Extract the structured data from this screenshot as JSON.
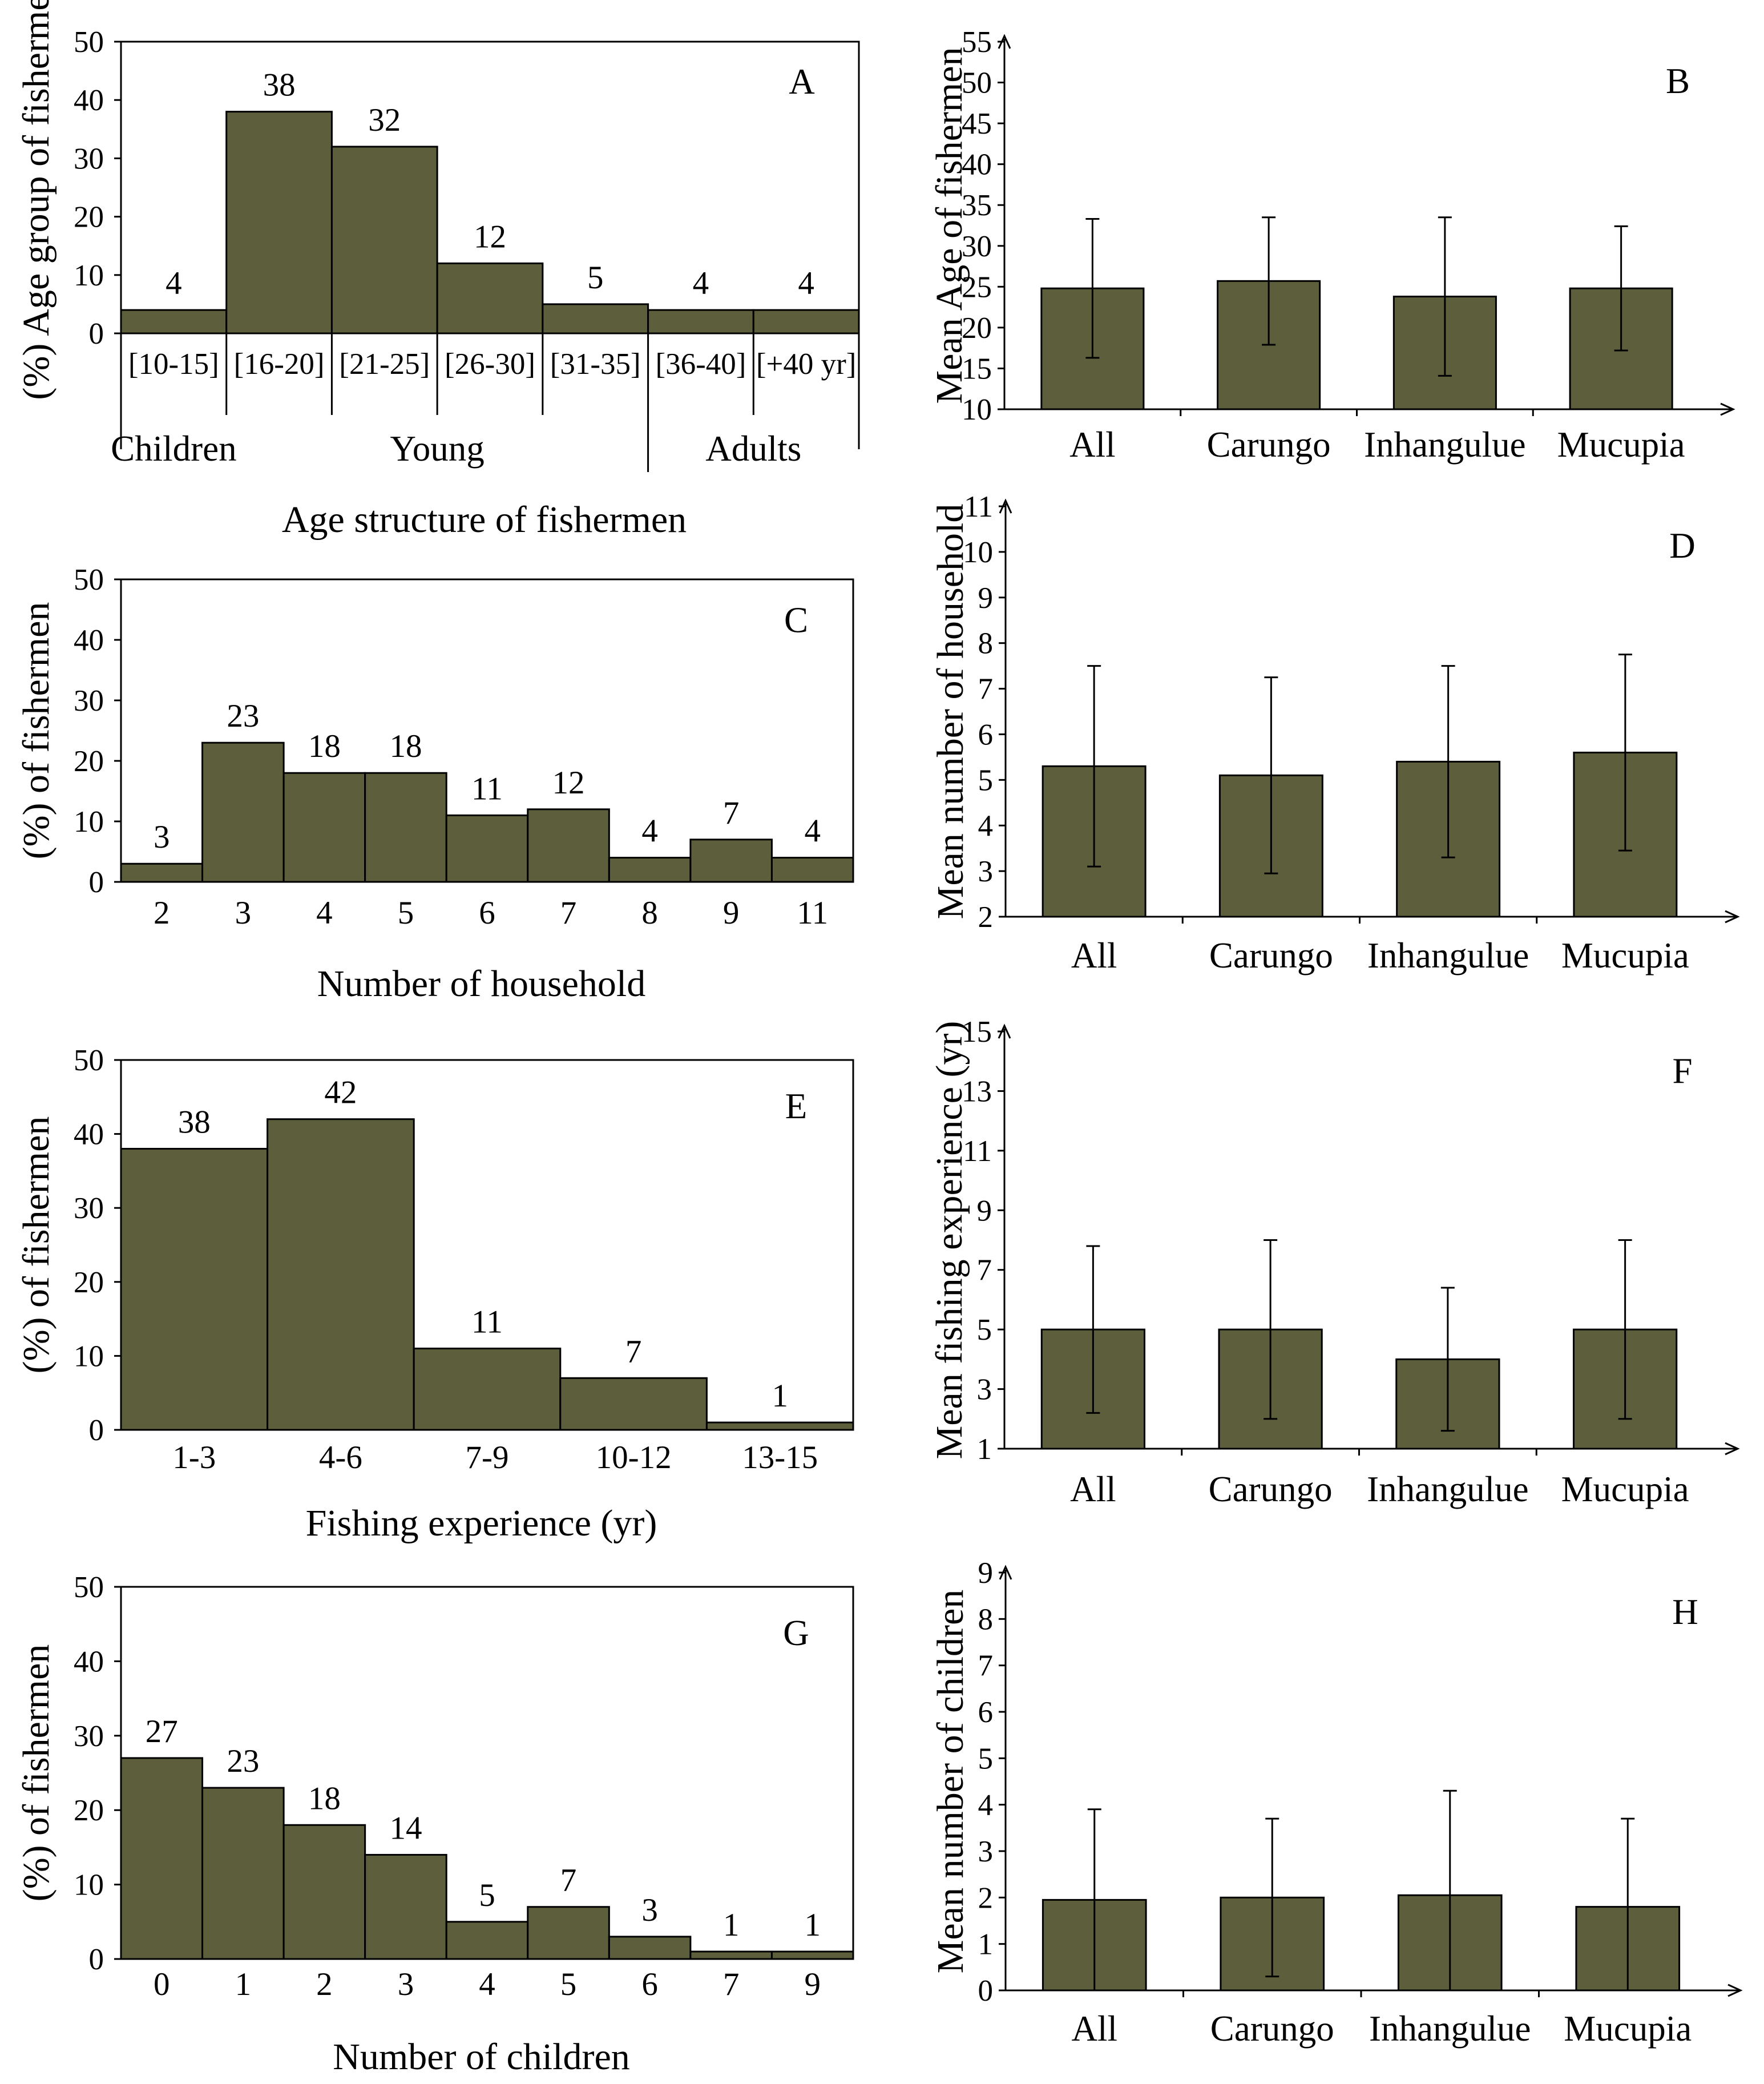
{
  "colors": {
    "bar": "#5c5e3c",
    "stroke": "#000000",
    "background": "#ffffff"
  },
  "chart_data": [
    {
      "id": "A",
      "panel_label": "A",
      "type": "bar",
      "variant": "histogram",
      "title": "",
      "xlabel": "Age structure of fishermen",
      "ylabel": "(%) Age group of fishermen",
      "categories": [
        "[10-15]",
        "[16-20]",
        "[21-25]",
        "[26-30]",
        "[31-35]",
        "[36-40]",
        "[+40 yr]"
      ],
      "values": [
        4,
        38,
        32,
        12,
        5,
        4,
        4
      ],
      "data_labels": [
        "4",
        "38",
        "32",
        "12",
        "5",
        "4",
        "4"
      ],
      "ylim": [
        0,
        50
      ],
      "yticks": [
        0,
        10,
        20,
        30,
        40,
        50
      ],
      "groups": [
        {
          "label": "Children",
          "from": 0,
          "to": 0
        },
        {
          "label": "Young",
          "from": 1,
          "to": 4
        },
        {
          "label": "Adults",
          "from": 5,
          "to": 6
        }
      ]
    },
    {
      "id": "B",
      "panel_label": "B",
      "type": "bar",
      "variant": "errorbar",
      "title": "",
      "xlabel": "",
      "ylabel": "Mean Age of fishermen",
      "categories": [
        "All",
        "Carungo",
        "Inhangulue",
        "Mucupia"
      ],
      "values": [
        24.8,
        25.7,
        23.8,
        24.8
      ],
      "errors": [
        8.5,
        7.8,
        9.7,
        7.6
      ],
      "ylim": [
        10,
        55
      ],
      "yticks": [
        10,
        15,
        20,
        25,
        30,
        35,
        40,
        45,
        50,
        55
      ]
    },
    {
      "id": "C",
      "panel_label": "C",
      "type": "bar",
      "variant": "histogram",
      "title": "",
      "xlabel": "Number of household",
      "ylabel": "(%) of fishermen",
      "categories": [
        "2",
        "3",
        "4",
        "5",
        "6",
        "7",
        "8",
        "9",
        "11"
      ],
      "values": [
        3,
        23,
        18,
        18,
        11,
        12,
        4,
        7,
        4
      ],
      "data_labels": [
        "3",
        "23",
        "18",
        "18",
        "11",
        "12",
        "4",
        "7",
        "4"
      ],
      "ylim": [
        0,
        50
      ],
      "yticks": [
        0,
        10,
        20,
        30,
        40,
        50
      ]
    },
    {
      "id": "D",
      "panel_label": "D",
      "type": "bar",
      "variant": "errorbar",
      "title": "",
      "xlabel": "",
      "ylabel": "Mean number of household",
      "categories": [
        "All",
        "Carungo",
        "Inhangulue",
        "Mucupia"
      ],
      "values": [
        5.3,
        5.1,
        5.4,
        5.6
      ],
      "errors": [
        2.2,
        2.15,
        2.1,
        2.15
      ],
      "ylim": [
        2,
        11
      ],
      "yticks": [
        2,
        3,
        4,
        5,
        6,
        7,
        8,
        9,
        10,
        11
      ]
    },
    {
      "id": "E",
      "panel_label": "E",
      "type": "bar",
      "variant": "histogram",
      "title": "",
      "xlabel": "Fishing  experience (yr)",
      "ylabel": "(%) of fishermen",
      "categories": [
        "1-3",
        "4-6",
        "7-9",
        "10-12",
        "13-15"
      ],
      "values": [
        38,
        42,
        11,
        7,
        1
      ],
      "data_labels": [
        "38",
        "42",
        "11",
        "7",
        "1"
      ],
      "ylim": [
        0,
        50
      ],
      "yticks": [
        0,
        10,
        20,
        30,
        40,
        50
      ]
    },
    {
      "id": "F",
      "panel_label": "F",
      "type": "bar",
      "variant": "errorbar",
      "title": "",
      "xlabel": "",
      "ylabel": "Mean fishing experience (yr)",
      "categories": [
        "All",
        "Carungo",
        "Inhangulue",
        "Mucupia"
      ],
      "values": [
        5,
        5,
        4,
        5
      ],
      "errors": [
        2.8,
        3,
        2.4,
        3
      ],
      "ylim": [
        1,
        15
      ],
      "yticks": [
        1,
        3,
        5,
        7,
        9,
        11,
        13,
        15
      ]
    },
    {
      "id": "G",
      "panel_label": "G",
      "type": "bar",
      "variant": "histogram",
      "title": "",
      "xlabel": "Number of children",
      "ylabel": "(%) of fishermen",
      "categories": [
        "0",
        "1",
        "2",
        "3",
        "4",
        "5",
        "6",
        "7",
        "9"
      ],
      "values": [
        27,
        23,
        18,
        14,
        5,
        7,
        3,
        1,
        1
      ],
      "data_labels": [
        "27",
        "23",
        "18",
        "14",
        "5",
        "7",
        "3",
        "1",
        "1"
      ],
      "ylim": [
        0,
        50
      ],
      "yticks": [
        0,
        10,
        20,
        30,
        40,
        50
      ]
    },
    {
      "id": "H",
      "panel_label": "H",
      "type": "bar",
      "variant": "errorbar",
      "title": "",
      "xlabel": "",
      "ylabel": "Mean number of children",
      "categories": [
        "All",
        "Carungo",
        "Inhangulue",
        "Mucupia"
      ],
      "values": [
        1.95,
        2.0,
        2.05,
        1.8
      ],
      "errors": [
        1.95,
        1.7,
        2.25,
        1.9
      ],
      "ylim": [
        0,
        9
      ],
      "yticks": [
        0,
        1,
        2,
        3,
        4,
        5,
        6,
        7,
        8,
        9
      ]
    }
  ]
}
